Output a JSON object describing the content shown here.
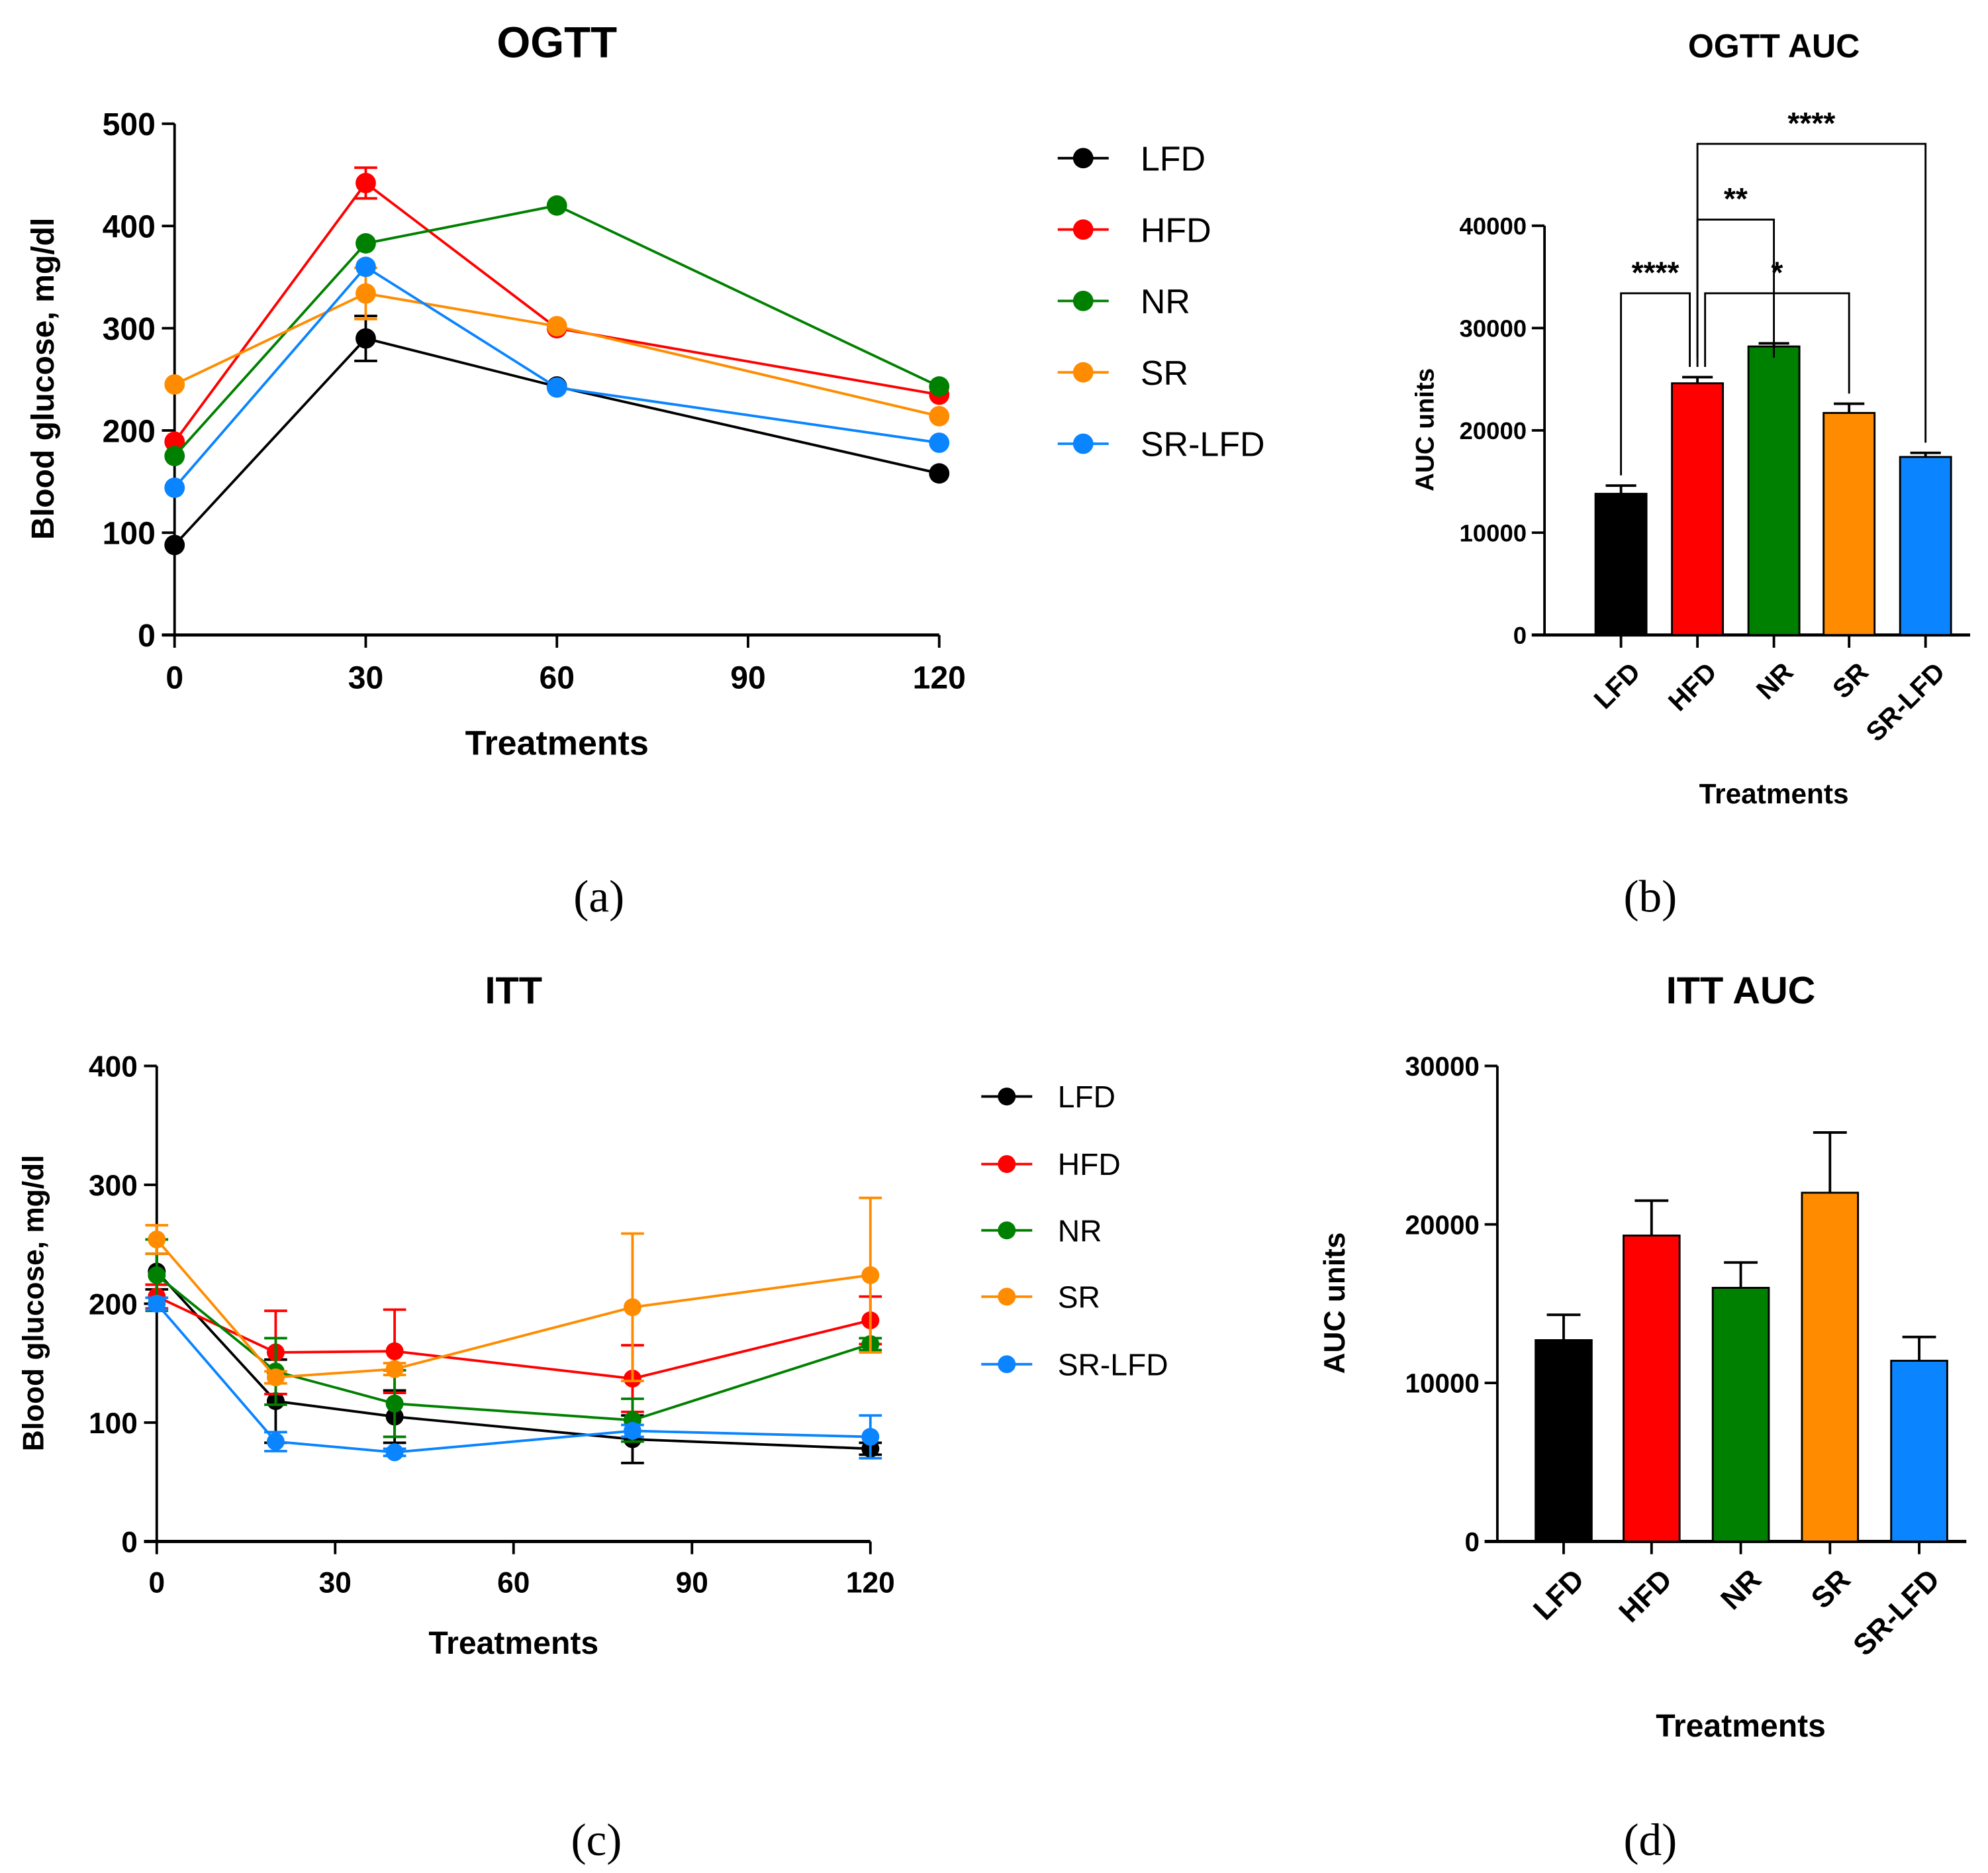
{
  "colors": {
    "LFD": "#000000",
    "HFD": "#ff0000",
    "NR": "#008000",
    "SR": "#ff8c00",
    "SR-LFD": "#0a84ff"
  },
  "chart_data": [
    {
      "type": "line",
      "panel_label": "(a)",
      "title": "OGTT",
      "xlabel": "Treatments",
      "ylabel": "Blood glucose, mg/dl",
      "xlim": [
        0,
        120
      ],
      "ylim": [
        0,
        500
      ],
      "xticks": [
        0,
        30,
        60,
        90,
        120
      ],
      "yticks": [
        0,
        100,
        200,
        300,
        400,
        500
      ],
      "legend": "right",
      "x": [
        0,
        30,
        60,
        120
      ],
      "series": [
        {
          "name": "LFD",
          "values": [
            88,
            290,
            243,
            158
          ],
          "errors": [
            0,
            22,
            0,
            0
          ]
        },
        {
          "name": "HFD",
          "values": [
            189,
            442,
            300,
            235
          ],
          "errors": [
            0,
            15,
            0,
            0
          ]
        },
        {
          "name": "NR",
          "values": [
            175,
            383,
            420,
            243
          ],
          "errors": [
            0,
            0,
            0,
            0
          ]
        },
        {
          "name": "SR",
          "values": [
            245,
            334,
            302,
            214
          ],
          "errors": [
            0,
            25,
            0,
            0
          ]
        },
        {
          "name": "SR-LFD",
          "values": [
            144,
            360,
            242,
            188
          ],
          "errors": [
            0,
            0,
            0,
            0
          ]
        }
      ]
    },
    {
      "type": "bar",
      "panel_label": "(b)",
      "title": "OGTT AUC",
      "xlabel": "Treatments",
      "ylabel": "AUC units",
      "ylim": [
        0,
        40000
      ],
      "yticks": [
        0,
        10000,
        20000,
        30000,
        40000
      ],
      "categories": [
        "LFD",
        "HFD",
        "NR",
        "SR",
        "SR-LFD"
      ],
      "values": [
        13800,
        24600,
        28200,
        21700,
        17400
      ],
      "errors": [
        800,
        600,
        300,
        900,
        400
      ],
      "significance": [
        {
          "from": "LFD",
          "to": "HFD",
          "label": "****",
          "level": 33400
        },
        {
          "from": "HFD",
          "to": "NR",
          "label": "**",
          "level": 40600
        },
        {
          "from": "HFD",
          "to": "SR",
          "label": "*",
          "level": 33400
        },
        {
          "from": "HFD",
          "to": "SR-LFD",
          "label": "****",
          "level": 48000
        }
      ]
    },
    {
      "type": "line",
      "panel_label": "(c)",
      "title": "ITT",
      "xlabel": "Treatments",
      "ylabel": "Blood glucose, mg/dl",
      "xlim": [
        0,
        120
      ],
      "ylim": [
        0,
        400
      ],
      "xticks": [
        0,
        30,
        60,
        90,
        120
      ],
      "yticks": [
        0,
        100,
        200,
        300,
        400
      ],
      "legend": "right",
      "x": [
        0,
        20,
        40,
        80,
        120
      ],
      "series": [
        {
          "name": "LFD",
          "values": [
            227,
            118,
            105,
            86,
            78
          ],
          "errors": [
            15,
            35,
            22,
            20,
            5
          ]
        },
        {
          "name": "HFD",
          "values": [
            206,
            159,
            160,
            137,
            186
          ],
          "errors": [
            10,
            35,
            35,
            28,
            20
          ]
        },
        {
          "name": "NR",
          "values": [
            224,
            143,
            116,
            102,
            166
          ],
          "errors": [
            30,
            28,
            28,
            18,
            5
          ]
        },
        {
          "name": "SR",
          "values": [
            254,
            138,
            145,
            197,
            224
          ],
          "errors": [
            12,
            5,
            5,
            62,
            65
          ]
        },
        {
          "name": "SR-LFD",
          "values": [
            200,
            84,
            75,
            93,
            88
          ],
          "errors": [
            5,
            8,
            3,
            5,
            18
          ]
        }
      ]
    },
    {
      "type": "bar",
      "panel_label": "(d)",
      "title": "ITT AUC",
      "xlabel": "Treatments",
      "ylabel": "AUC units",
      "ylim": [
        0,
        30000
      ],
      "yticks": [
        0,
        10000,
        20000,
        30000
      ],
      "categories": [
        "LFD",
        "HFD",
        "NR",
        "SR",
        "SR-LFD"
      ],
      "values": [
        12700,
        19300,
        16000,
        22000,
        11400
      ],
      "errors": [
        1600,
        2200,
        1600,
        3800,
        1500
      ]
    }
  ]
}
